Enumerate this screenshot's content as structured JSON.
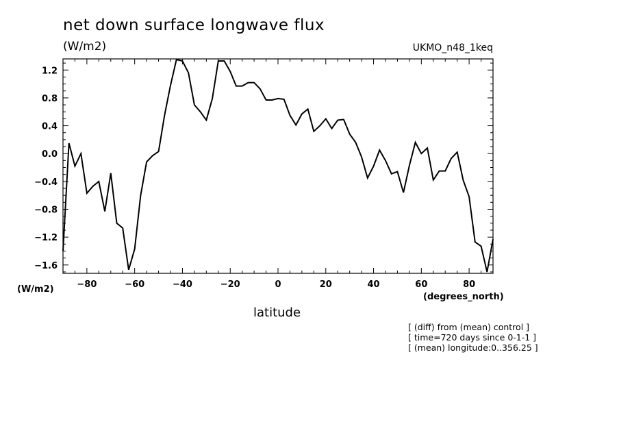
{
  "chart_data": {
    "type": "line",
    "title": "net down surface longwave flux",
    "units_top": "(W/m2)",
    "model_label": "UKMO_n48_1keq",
    "units_left": "(W/m2)",
    "xlabel": "latitude",
    "x_units": "(degrees_north)",
    "xlim": [
      -90,
      90
    ],
    "ylim": [
      -1.72,
      1.36
    ],
    "xticks": [
      -80,
      -60,
      -40,
      -20,
      0,
      20,
      40,
      60,
      80
    ],
    "yticks": [
      1.2,
      0.8,
      0.4,
      0.0,
      -0.4,
      -0.8,
      -1.2,
      -1.6
    ],
    "ytick_labels": [
      "1.2",
      "0.8",
      "0.4",
      "0.0",
      "−0.4",
      "−0.8",
      "−1.2",
      "−1.6"
    ],
    "xtick_labels": [
      "−80",
      "−60",
      "−40",
      "−20",
      "0",
      "20",
      "40",
      "60",
      "80"
    ],
    "series": [
      {
        "color": "#000000",
        "x": [
          -90.0,
          -87.5,
          -85.0,
          -82.5,
          -80.0,
          -77.5,
          -75.0,
          -72.5,
          -70.0,
          -67.5,
          -65.0,
          -62.5,
          -60.0,
          -57.5,
          -55.0,
          -52.5,
          -50.0,
          -47.5,
          -45.0,
          -42.5,
          -40.0,
          -37.5,
          -35.0,
          -32.5,
          -30.0,
          -27.5,
          -25.0,
          -22.5,
          -20.0,
          -17.5,
          -15.0,
          -12.5,
          -10.0,
          -7.5,
          -5.0,
          -2.5,
          0.0,
          2.5,
          5.0,
          7.5,
          10.0,
          12.5,
          15.0,
          17.5,
          20.0,
          22.5,
          25.0,
          27.5,
          30.0,
          32.5,
          35.0,
          37.5,
          40.0,
          42.5,
          45.0,
          47.5,
          50.0,
          52.5,
          55.0,
          57.5,
          60.0,
          62.5,
          65.0,
          67.5,
          70.0,
          72.5,
          75.0,
          77.5,
          80.0,
          82.5,
          85.0,
          87.5,
          90.0
        ],
        "y": [
          -1.4,
          0.15,
          -0.18,
          0.0,
          -0.57,
          -0.47,
          -0.4,
          -0.83,
          -0.28,
          -1.0,
          -1.07,
          -1.67,
          -1.37,
          -0.6,
          -0.12,
          -0.03,
          0.03,
          0.55,
          0.98,
          1.35,
          1.33,
          1.16,
          0.7,
          0.6,
          0.48,
          0.79,
          1.33,
          1.33,
          1.18,
          0.97,
          0.97,
          1.02,
          1.02,
          0.93,
          0.77,
          0.77,
          0.79,
          0.78,
          0.55,
          0.41,
          0.57,
          0.64,
          0.32,
          0.4,
          0.5,
          0.36,
          0.48,
          0.49,
          0.28,
          0.16,
          -0.05,
          -0.35,
          -0.18,
          0.05,
          -0.1,
          -0.29,
          -0.26,
          -0.56,
          -0.17,
          0.16,
          0.0,
          0.08,
          -0.38,
          -0.25,
          -0.25,
          -0.07,
          0.02,
          -0.38,
          -0.62,
          -1.27,
          -1.33,
          -1.7,
          -1.23
        ]
      }
    ]
  },
  "notes": [
    "[ (diff) from (mean) control ]",
    "[ time=720 days since 0-1-1 ]",
    "[ (mean) longitude:0..356.25 ]"
  ]
}
